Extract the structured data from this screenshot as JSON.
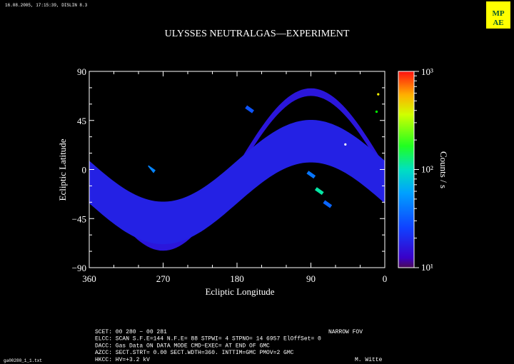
{
  "header": {
    "timestamp": "16.08.2005, 17:15:39, DISLIN 8.3",
    "logo_text": "MPAE"
  },
  "chart_data": {
    "type": "heatmap",
    "title": "ULYSSES NEUTRALGAS—EXPERIMENT",
    "xlabel": "Ecliptic Longitude",
    "ylabel": "Ecliptic Latitude",
    "xlim": [
      360,
      0
    ],
    "ylim": [
      -90,
      90
    ],
    "x_ticks": [
      {
        "value": 360,
        "label": "360"
      },
      {
        "value": 270,
        "label": "270"
      },
      {
        "value": 180,
        "label": "180"
      },
      {
        "value": 90,
        "label": "90"
      },
      {
        "value": 0,
        "label": "0"
      }
    ],
    "y_ticks": [
      {
        "value": 90,
        "label": "90"
      },
      {
        "value": 45,
        "label": "45"
      },
      {
        "value": 0,
        "label": "0"
      },
      {
        "value": -45,
        "label": "−45"
      },
      {
        "value": -90,
        "label": "−90"
      }
    ],
    "colorbar": {
      "label": "Counts / s",
      "scale": "log",
      "range": [
        10,
        1000
      ],
      "ticks": [
        {
          "value": 1000,
          "label": "10³"
        },
        {
          "value": 100,
          "label": "10²"
        },
        {
          "value": 10,
          "label": "10¹"
        }
      ]
    },
    "bands": [
      {
        "name": "outer-scan-band",
        "center_lat": 0,
        "amplitude": 71,
        "lon_start": 0,
        "lon_end": 352,
        "width_deg": 7,
        "value": 16
      },
      {
        "name": "inner-scan-band",
        "center_lat": -11.5,
        "amplitude": 37.5,
        "lon_start": 0,
        "lon_end": 360,
        "width_deg": 39,
        "value": 18
      }
    ],
    "highlights": [
      {
        "name": "hotspot-green",
        "lon": 80,
        "lat": -20,
        "value": 110
      },
      {
        "name": "hotspot-cyan-1",
        "lon": 90,
        "lat": -5,
        "value": 40
      },
      {
        "name": "hotspot-cyan-2",
        "lon": 165,
        "lat": 55,
        "value": 30
      },
      {
        "name": "hotspot-cyan-3",
        "lon": 285,
        "lat": 0,
        "value": 45
      },
      {
        "name": "hotspot-cyan-4",
        "lon": 70,
        "lat": -32,
        "value": 35
      }
    ],
    "markers": [
      {
        "name": "marker-yellow",
        "lon": 8,
        "lat": 69,
        "color": "#ffff00"
      },
      {
        "name": "marker-green",
        "lon": 10,
        "lat": 53,
        "color": "#00ff00"
      },
      {
        "name": "marker-white",
        "lon": 48,
        "lat": 23,
        "color": "#ffffff"
      }
    ]
  },
  "footer": {
    "lines": [
      "SCET: 00 280 − 00 281",
      "ELCC: SCAN  S.F.E=144 N.F.E= 88 STPWI=  4  STPNO= 14   6957  ElOffSet= 0",
      "DACC: Gas Data ON    DATA MODE CMD−EXEC= AT END OF GMC",
      "AZCC: SECT.STRT=   0.00 SECT.WDTH=360. INTTIM=GMC PMOV=2 GMC",
      "HKCC: HV=+3.2 kV"
    ],
    "fov": "NARROW FOV",
    "author": "M. Witte",
    "filename": "ga00280_1_1.txt"
  }
}
